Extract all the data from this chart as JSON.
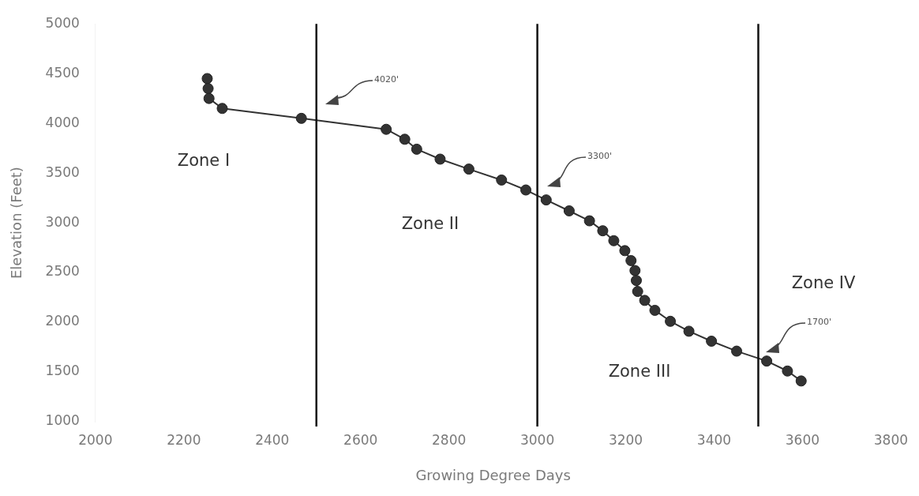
{
  "chart_data": {
    "type": "line",
    "xlabel": "Growing Degree Days",
    "ylabel": "Elevation (Feet)",
    "xlim": [
      2000,
      3800
    ],
    "xticks": [
      2000,
      2200,
      2400,
      2600,
      2800,
      3000,
      3200,
      3400,
      3600,
      3800
    ],
    "ylim": [
      1000,
      5000
    ],
    "yticks": [
      1000,
      1500,
      2000,
      2500,
      3000,
      3500,
      4000,
      4500,
      5000
    ],
    "grid": false,
    "marker": "circle",
    "line_style": "solid",
    "series": [
      {
        "color": "#333333",
        "x": [
          2253,
          2255,
          2257,
          2287,
          2466,
          2658,
          2700,
          2727,
          2780,
          2845,
          2919,
          2974,
          3020,
          3072,
          3118,
          3148,
          3173,
          3198,
          3212,
          3221,
          3224,
          3227,
          3243,
          3266,
          3301,
          3343,
          3394,
          3451,
          3519,
          3566,
          3597
        ],
        "values": [
          4450,
          4350,
          4250,
          4150,
          4050,
          3940,
          3840,
          3740,
          3640,
          3540,
          3430,
          3330,
          3230,
          3120,
          3020,
          2920,
          2820,
          2720,
          2620,
          2520,
          2420,
          2310,
          2220,
          2120,
          2010,
          1910,
          1810,
          1710,
          1610,
          1510,
          1410
        ]
      }
    ],
    "ref_lines": [
      {
        "axis": "x",
        "value": 2500,
        "color": "#111111"
      },
      {
        "axis": "x",
        "value": 3000,
        "color": "#111111"
      },
      {
        "axis": "x",
        "value": 3500,
        "color": "#111111"
      }
    ],
    "annotations": [
      "4020'",
      "3300'",
      "1700'",
      "Zone I",
      "Zone II",
      "Zone III",
      "Zone IV"
    ]
  }
}
